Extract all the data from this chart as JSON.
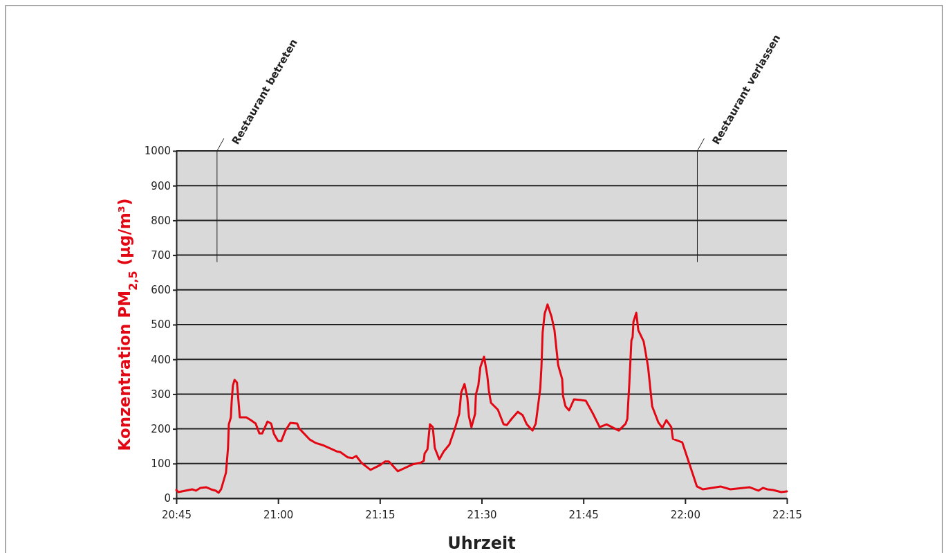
{
  "chart_data": {
    "type": "line",
    "xlabel": "Uhrzeit",
    "ylabel": "Konzentration PM$_{2,5}$ (µg/m³)",
    "xlim": [
      20.75,
      22.25
    ],
    "xticks": [
      {
        "value": 20.75,
        "label": "20:45"
      },
      {
        "value": 21,
        "label": "21:00"
      },
      {
        "value": 21.25,
        "label": "21:15"
      },
      {
        "value": 21.5,
        "label": "21:30"
      },
      {
        "value": 21.75,
        "label": "21:45"
      },
      {
        "value": 22,
        "label": "22:00"
      },
      {
        "value": 22.25,
        "label": "22:15"
      }
    ],
    "ylim": [
      0,
      1000
    ],
    "yticks": [
      0,
      100,
      200,
      300,
      400,
      500,
      600,
      700,
      800,
      900,
      1000
    ],
    "grid": "y",
    "marker": "none",
    "line_style": "solid",
    "ref_lines": [
      {
        "axis": "x",
        "value": 20.85,
        "label": "Restaurant betreten"
      },
      {
        "axis": "x",
        "value": 22.03,
        "label": "Restaurant verlassen"
      }
    ],
    "series": [
      {
        "color": "#e30613",
        "x": [
          20.75,
          20.755,
          20.789,
          20.798,
          20.809,
          20.823,
          20.835,
          20.847,
          20.854,
          20.86,
          20.872,
          20.877,
          20.879,
          20.884,
          20.886,
          20.889,
          20.893,
          20.899,
          20.906,
          20.922,
          20.933,
          20.945,
          20.954,
          20.961,
          20.974,
          20.983,
          20.99,
          21.0,
          21.008,
          21.018,
          21.03,
          21.047,
          21.052,
          21.078,
          21.093,
          21.11,
          21.144,
          21.153,
          21.171,
          21.183,
          21.192,
          21.205,
          21.227,
          21.251,
          21.263,
          21.272,
          21.28,
          21.294,
          21.331,
          21.35,
          21.358,
          21.36,
          21.367,
          21.373,
          21.38,
          21.385,
          21.396,
          21.407,
          21.421,
          21.435,
          21.445,
          21.45,
          21.458,
          21.465,
          21.469,
          21.475,
          21.484,
          21.486,
          21.492,
          21.497,
          21.506,
          21.514,
          21.518,
          21.523,
          21.54,
          21.554,
          21.562,
          21.574,
          21.589,
          21.601,
          21.611,
          21.625,
          21.633,
          21.644,
          21.647,
          21.65,
          21.655,
          21.662,
          21.672,
          21.679,
          21.688,
          21.698,
          21.7,
          21.706,
          21.715,
          21.727,
          21.744,
          21.756,
          21.773,
          21.79,
          21.807,
          21.837,
          21.854,
          21.858,
          21.863,
          21.868,
          21.871,
          21.873,
          21.88,
          21.885,
          21.898,
          21.902,
          21.909,
          21.919,
          21.934,
          21.944,
          21.954,
          21.966,
          21.97,
          21.993,
          22.029,
          22.043,
          22.087,
          22.111,
          22.158,
          22.18,
          22.191,
          22.202,
          22.216,
          22.236,
          22.25
        ],
        "values": [
          24,
          18,
          26,
          22,
          30,
          32,
          26,
          22,
          16,
          26,
          74,
          145,
          213,
          233,
          279,
          325,
          341,
          333,
          233,
          233,
          225,
          215,
          187,
          187,
          221,
          215,
          185,
          165,
          165,
          195,
          217,
          215,
          201,
          169,
          159,
          153,
          135,
          133,
          118,
          116,
          122,
          102,
          82,
          96,
          106,
          106,
          96,
          78,
          98,
          102,
          108,
          129,
          141,
          213,
          205,
          145,
          112,
          135,
          155,
          203,
          243,
          305,
          329,
          289,
          235,
          205,
          243,
          299,
          325,
          378,
          408,
          353,
          309,
          275,
          255,
          213,
          211,
          229,
          249,
          239,
          213,
          195,
          215,
          315,
          378,
          478,
          532,
          558,
          522,
          484,
          384,
          343,
          295,
          265,
          253,
          285,
          283,
          281,
          245,
          205,
          213,
          195,
          215,
          229,
          333,
          454,
          464,
          508,
          534,
          484,
          452,
          426,
          378,
          265,
          219,
          203,
          225,
          205,
          171,
          161,
          34,
          26,
          34,
          26,
          32,
          22,
          30,
          26,
          24,
          18,
          20
        ]
      }
    ]
  }
}
